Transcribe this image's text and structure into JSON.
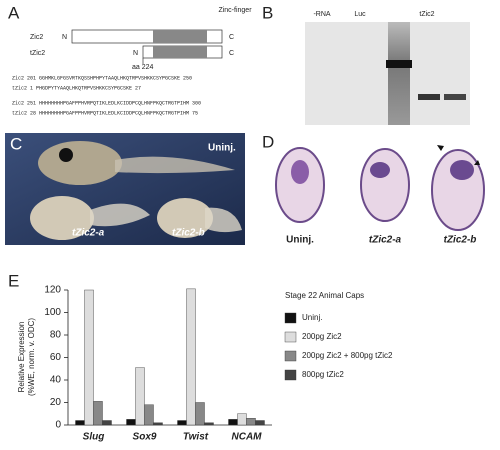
{
  "panel_a": {
    "label": "A",
    "domain_label": "Zinc-finger",
    "constructs": [
      {
        "name": "Zic2",
        "n": "N",
        "c": "C"
      },
      {
        "name": "tZic2",
        "n": "N",
        "c": "C"
      }
    ],
    "position_label": "aa 224",
    "sequence": [
      "Zic2  201 GGHMKLGFGSVRTKQSSHPHPYTAAQLHKQTRPVSHKKCSYPGCSKE 250",
      "tZic2 1                       PHGDPYTYAAQLHKQTRPVSHKKCSYPGCSKE 27",
      "Zic2  251 HHHHHHHHPGAFPPHVRPQTIKLEDLKCIDDPCQLHNFPKQCTRGTPIHM 300",
      "tZic2 28  HHHHHHHHPGAFPPHVRPQTIKLEDLKCIDDPCQLHNFPKQCTRGTPIHM 75"
    ]
  },
  "panel_b": {
    "label": "B",
    "lanes": [
      "-RNA",
      "Luc",
      "tZic2"
    ]
  },
  "panel_c": {
    "label": "C",
    "labels": [
      "Uninj.",
      "tZic2-a",
      "tZic2-b"
    ]
  },
  "panel_d": {
    "label": "D",
    "labels": [
      "Uninj.",
      "tZic2-a",
      "tZic2-b"
    ]
  },
  "chart_data": {
    "type": "bar",
    "panel_label": "E",
    "y_label": [
      "Relative Expression",
      "(%WE, norm. v. ODC)"
    ],
    "legend_title": "Stage 22 Animal Caps",
    "categories": [
      "Slug",
      "Sox9",
      "Twist",
      "NCAM"
    ],
    "series": [
      {
        "name": "Uninj.",
        "color": "#111111",
        "values": [
          4,
          5,
          4,
          5
        ]
      },
      {
        "name": "200pg Zic2",
        "color": "#dddddd",
        "values": [
          120,
          51,
          121,
          10
        ]
      },
      {
        "name": "200pg Zic2 + 800pg tZic2",
        "color": "#888888",
        "values": [
          21,
          18,
          20,
          6
        ]
      },
      {
        "name": "800pg tZic2",
        "color": "#444444",
        "values": [
          4,
          2,
          2,
          4
        ]
      }
    ],
    "ylim": [
      0,
      120
    ],
    "yticks": [
      0,
      20,
      40,
      60,
      80,
      100,
      120
    ]
  }
}
